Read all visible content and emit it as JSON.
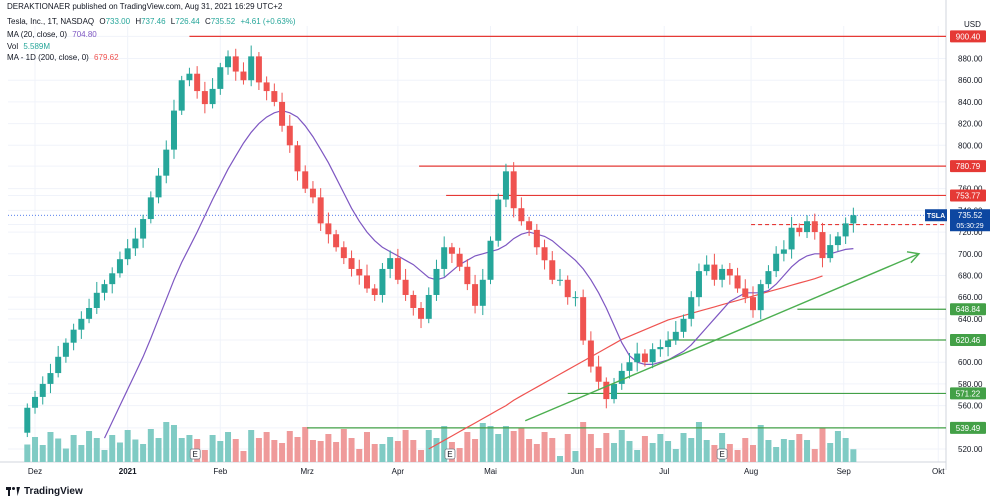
{
  "header": {
    "published": "DERAKTIONAER published on TradingView.com, Aug 31, 2021 16:29 UTC+2",
    "symbol": "Tesla, Inc., 1T, NASDAQ",
    "ohlc": {
      "o_label": "O",
      "o": "733.00",
      "h_label": "H",
      "h": "737.46",
      "l_label": "L",
      "l": "726.44",
      "c_label": "C",
      "c": "735.52",
      "change": "+4.61 (+0.63%)"
    },
    "ma20_label": "MA (20, close, 0)",
    "ma20_value": "704.80",
    "vol_label": "Vol",
    "vol_value": "5.589M",
    "ma200_label": "MA - 1D (200, close, 0)",
    "ma200_value": "679.62",
    "currency": "USD"
  },
  "footer": {
    "brand": "TradingView"
  },
  "colors": {
    "up": "#26a69a",
    "down": "#ef5350",
    "ma20": "#7e57c2",
    "ma200": "#ef5350",
    "resistance": "#e53935",
    "support": "#43a047",
    "trend": "#4caf50",
    "symbol_tag": "#0d47a1",
    "vol_up": "#80cbc4",
    "vol_down": "#ef9a9a"
  },
  "chart_data": {
    "type": "candlestick",
    "symbol_tag": "TSLA",
    "last_price": "735.52",
    "countdown": "05:30:29",
    "ylim": [
      508,
      910
    ],
    "y_ticks": [
      "900.40",
      "880.00",
      "860.00",
      "840.00",
      "820.00",
      "800.00",
      "780.79",
      "760.00",
      "753.77",
      "740.00",
      "726.94",
      "720.00",
      "700.00",
      "680.00",
      "660.00",
      "648.84",
      "640.00",
      "620.46",
      "600.00",
      "580.00",
      "571.22",
      "560.00",
      "539.49",
      "520.00"
    ],
    "y_tick_values": [
      900.4,
      880,
      860,
      840,
      820,
      800,
      780.79,
      760,
      753.77,
      740,
      726.94,
      720,
      700,
      680,
      660,
      648.84,
      640,
      620.46,
      600,
      580,
      571.22,
      560,
      539.49,
      520
    ],
    "x_ticks": [
      "Dez",
      "2021",
      "Feb",
      "Mrz",
      "Apr",
      "Mai",
      "Jun",
      "Jul",
      "Aug",
      "Sep",
      "Okt"
    ],
    "x_tick_index": [
      14,
      62,
      110,
      155,
      202,
      250,
      295,
      340,
      385,
      433,
      482
    ],
    "levels": {
      "resistance": [
        {
          "label": "900.40",
          "value": 900.4,
          "from": 94
        },
        {
          "label": "780.79",
          "value": 780.79,
          "from": 213
        },
        {
          "label": "753.77",
          "value": 753.77,
          "from": 227
        },
        {
          "label": "726.94",
          "value": 726.94,
          "from": 385
        }
      ],
      "support": [
        {
          "label": "648.84",
          "value": 648.84,
          "from": 409
        },
        {
          "label": "620.46",
          "value": 620.46,
          "from": 342
        },
        {
          "label": "571.22",
          "value": 571.22,
          "from": 290
        },
        {
          "label": "539.49",
          "value": 539.49,
          "from": 155
        }
      ]
    },
    "trendline": {
      "from_index": 268,
      "from_value": 546,
      "to_index": 472,
      "to_value": 700
    },
    "events": [
      {
        "label": "E",
        "index": 97
      },
      {
        "label": "E",
        "index": 229
      },
      {
        "label": "E",
        "index": 370
      }
    ],
    "open_start": 535,
    "x": [
      0,
      4,
      8,
      12,
      16,
      20,
      24,
      28,
      32,
      36,
      40,
      44,
      48,
      52,
      56,
      60,
      64,
      68,
      72,
      76,
      80,
      84,
      88,
      92,
      96,
      100,
      104,
      108,
      112,
      116,
      120,
      124,
      128,
      132,
      136,
      140,
      144,
      148,
      152,
      156,
      160,
      164,
      168,
      172,
      176,
      180,
      184,
      188,
      192,
      196,
      200,
      204,
      208,
      212,
      216,
      220,
      224,
      228,
      232,
      236,
      240,
      244,
      248,
      252,
      256,
      260,
      264,
      268,
      272,
      276,
      280,
      284,
      288,
      292,
      296,
      300,
      304,
      308,
      312,
      316,
      320,
      324,
      328,
      332,
      336,
      340,
      344,
      348,
      352,
      356,
      360,
      364,
      368,
      372,
      376,
      380,
      384,
      388,
      392,
      396,
      400,
      404,
      408,
      412,
      416,
      420,
      424,
      428
    ],
    "close": [
      558,
      568,
      580,
      590,
      605,
      618,
      630,
      640,
      650,
      664,
      672,
      682,
      695,
      705,
      714,
      732,
      752,
      772,
      796,
      832,
      860,
      866,
      850,
      838,
      852,
      872,
      882,
      868,
      860,
      882,
      858,
      850,
      840,
      818,
      800,
      776,
      760,
      752,
      728,
      718,
      706,
      696,
      686,
      680,
      668,
      662,
      686,
      696,
      676,
      662,
      650,
      640,
      662,
      686,
      706,
      700,
      688,
      672,
      652,
      676,
      712,
      750,
      776,
      742,
      730,
      722,
      706,
      694,
      676,
      676,
      660,
      660,
      620,
      596,
      582,
      566,
      580,
      592,
      600,
      608,
      600,
      612,
      614,
      620,
      628,
      640,
      660,
      684,
      690,
      676,
      686,
      680,
      668,
      660,
      648,
      672,
      684,
      700,
      704,
      724,
      720,
      730,
      720,
      696,
      708,
      716,
      728,
      735.5
    ],
    "ma20": [
      null,
      null,
      null,
      null,
      null,
      null,
      null,
      null,
      null,
      null,
      530,
      545,
      560,
      575,
      590,
      605,
      622,
      640,
      658,
      676,
      692,
      706,
      720,
      735,
      750,
      764,
      778,
      790,
      802,
      812,
      820,
      826,
      830,
      832,
      830,
      826,
      818,
      808,
      796,
      784,
      770,
      756,
      742,
      730,
      720,
      712,
      706,
      702,
      698,
      694,
      690,
      684,
      678,
      676,
      678,
      684,
      690,
      694,
      698,
      700,
      702,
      704,
      708,
      714,
      718,
      720,
      718,
      716,
      712,
      706,
      700,
      694,
      686,
      676,
      664,
      650,
      634,
      618,
      606,
      600,
      598,
      598,
      600,
      602,
      606,
      610,
      616,
      624,
      632,
      640,
      648,
      656,
      660,
      664,
      664,
      664,
      666,
      672,
      680,
      688,
      694,
      698,
      700,
      700,
      700,
      702,
      704,
      704.8
    ],
    "ma200": [
      null,
      null,
      null,
      null,
      null,
      null,
      null,
      null,
      null,
      null,
      null,
      null,
      null,
      null,
      null,
      null,
      null,
      null,
      null,
      null,
      null,
      null,
      null,
      null,
      null,
      null,
      null,
      null,
      null,
      null,
      null,
      null,
      null,
      null,
      null,
      null,
      null,
      null,
      null,
      null,
      null,
      null,
      null,
      null,
      null,
      null,
      null,
      null,
      null,
      null,
      null,
      null,
      520,
      524,
      528,
      532,
      536,
      540,
      544,
      548,
      552,
      556,
      560,
      565,
      569,
      573,
      577,
      581,
      585,
      589,
      593,
      597,
      601,
      605,
      609,
      613,
      617,
      621,
      624,
      627,
      630,
      633,
      636,
      639,
      641,
      643,
      645,
      647,
      649,
      651,
      653,
      655,
      657,
      659,
      661,
      663,
      665,
      667,
      669,
      671,
      673,
      675,
      677,
      679.6,
      null,
      null,
      null,
      null
    ],
    "volume_max_label": "Vol"
  }
}
